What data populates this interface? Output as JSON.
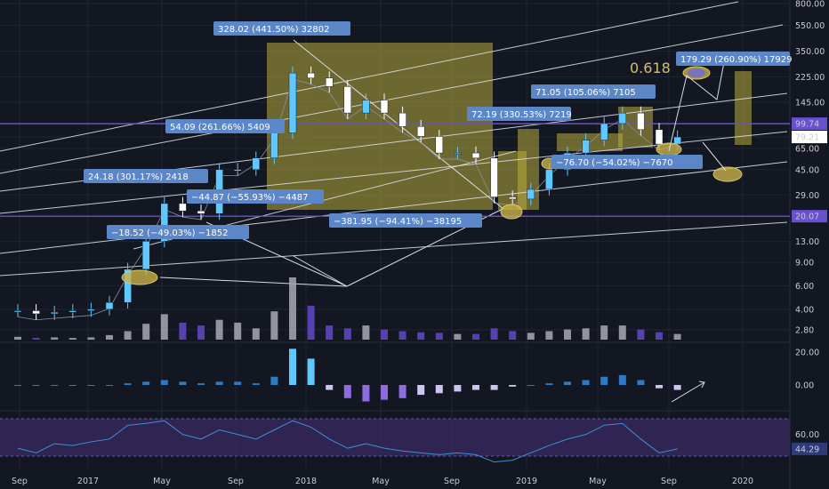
{
  "colors": {
    "background": "#131722",
    "grid": "#1f2433",
    "up": "#5ec8ff",
    "down": "#ffffff",
    "zone": "#b8ac3a",
    "label_bg": "#5b86c7",
    "purple": "#6a4fd0",
    "rsi_band": "#3b2a63"
  },
  "price_axis": {
    "ticks": [
      "800.00",
      "550.00",
      "350.00",
      "225.00",
      "145.00",
      "99.74",
      "79.21",
      "65.00",
      "45.00",
      "29.00",
      "20.07",
      "13.00",
      "9.00",
      "6.00",
      "4.00",
      "2.80"
    ],
    "marker_highlight": "99.74",
    "marker_last": "79.21",
    "marker_support": "20.07"
  },
  "macd_axis": {
    "ticks": [
      "20.00",
      "0.00"
    ]
  },
  "rsi_axis": {
    "ticks": [
      "60.00",
      "44.29"
    ]
  },
  "time_axis": {
    "labels": [
      "Sep",
      "2017",
      "May",
      "Sep",
      "2018",
      "May",
      "Sep",
      "2019",
      "May",
      "Sep",
      "2020"
    ]
  },
  "annotations": {
    "fib_level": "0.618",
    "tags": [
      "328.02 (441.50%) 32802",
      "54.09 (261.66%) 5409",
      "24.18 (301.17%) 2418",
      "−44.87 (−55.93%) −4487",
      "−18.52 (−49.03%) −1852",
      "−381.95 (−94.41%) −38195",
      "72.19 (330.53%) 7219",
      "71.05 (105.06%) 7105",
      "−76.70 (−54.02%) −7670",
      "179.29 (260.90%) 17929"
    ]
  },
  "chart_data": {
    "type": "candlestick",
    "scale": "log",
    "x": [
      "2016-09",
      "2016-10",
      "2016-11",
      "2016-12",
      "2017-01",
      "2017-02",
      "2017-03",
      "2017-04",
      "2017-05",
      "2017-06",
      "2017-07",
      "2017-08",
      "2017-09",
      "2017-10",
      "2017-11",
      "2017-12",
      "2018-01",
      "2018-02",
      "2018-03",
      "2018-04",
      "2018-05",
      "2018-06",
      "2018-07",
      "2018-08",
      "2018-09",
      "2018-10",
      "2018-11",
      "2018-12",
      "2019-01",
      "2019-02",
      "2019-03",
      "2019-04",
      "2019-05",
      "2019-06",
      "2019-07",
      "2019-08",
      "2019-09"
    ],
    "close": [
      3.9,
      3.7,
      3.8,
      3.9,
      4.0,
      4.5,
      8.0,
      13.0,
      25.0,
      22.0,
      21.0,
      45.0,
      45.0,
      55.0,
      85.0,
      240.0,
      220.0,
      190.0,
      120.0,
      150.0,
      120.0,
      95.0,
      80.0,
      60.0,
      60.0,
      55.0,
      28.0,
      27.0,
      32.0,
      45.0,
      60.0,
      75.0,
      100.0,
      120.0,
      90.0,
      70.0,
      79.21
    ],
    "volume": [
      5,
      3,
      4,
      3,
      4,
      8,
      15,
      28,
      45,
      30,
      25,
      35,
      30,
      20,
      50,
      110,
      60,
      25,
      20,
      25,
      18,
      15,
      13,
      12,
      10,
      10,
      20,
      15,
      12,
      15,
      18,
      20,
      25,
      25,
      18,
      13,
      10
    ],
    "macd": [
      0,
      0,
      0,
      0,
      0,
      0,
      1,
      2,
      3,
      2,
      1,
      2,
      2,
      1,
      5,
      22,
      16,
      -3,
      -8,
      -10,
      -9,
      -8,
      -6,
      -5,
      -4,
      -3,
      -3,
      -1,
      0,
      1,
      2,
      3,
      5,
      6,
      3,
      -2,
      -3
    ],
    "rsi": [
      45,
      40,
      50,
      48,
      52,
      55,
      70,
      72,
      75,
      60,
      55,
      65,
      60,
      55,
      65,
      75,
      68,
      55,
      45,
      50,
      45,
      42,
      40,
      38,
      40,
      38,
      30,
      32,
      40,
      48,
      55,
      60,
      70,
      72,
      55,
      40,
      44.29
    ],
    "ylim": [
      2.5,
      900
    ],
    "last": 79.21
  }
}
